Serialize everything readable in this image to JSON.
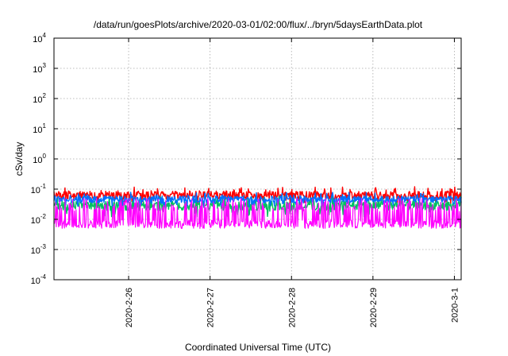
{
  "chart_data": {
    "type": "line",
    "title": "/data/run/goesPlots/archive/2020-03-01/02:00/flux/../bryn/5daysEarthData.plot",
    "xlabel": "Coordinated Universal Time (UTC)",
    "ylabel": "cSv/day",
    "y_scale": "log",
    "ylim": [
      0.0001,
      10000
    ],
    "y_ticks": [
      {
        "base": "10",
        "exp": "-4",
        "value": 0.0001
      },
      {
        "base": "10",
        "exp": "-3",
        "value": 0.001
      },
      {
        "base": "10",
        "exp": "-2",
        "value": 0.01
      },
      {
        "base": "10",
        "exp": "-1",
        "value": 0.1
      },
      {
        "base": "10",
        "exp": "0",
        "value": 1
      },
      {
        "base": "10",
        "exp": "1",
        "value": 10
      },
      {
        "base": "10",
        "exp": "2",
        "value": 100
      },
      {
        "base": "10",
        "exp": "3",
        "value": 1000
      },
      {
        "base": "10",
        "exp": "4",
        "value": 10000
      }
    ],
    "xlim": [
      "2020-02-25T02:00",
      "2020-03-01T02:00"
    ],
    "x_ticks": [
      {
        "label": "2020-2-26",
        "value": "2020-02-26T00:00"
      },
      {
        "label": "2020-2-27",
        "value": "2020-02-27T00:00"
      },
      {
        "label": "2020-2-28",
        "value": "2020-02-28T00:00"
      },
      {
        "label": "2020-2-29",
        "value": "2020-02-29T00:00"
      },
      {
        "label": "2020-3-1",
        "value": "2020-03-01T00:00"
      }
    ],
    "grid": true,
    "series": [
      {
        "color": "#ff0000",
        "typical_range": [
          0.03,
          0.12
        ]
      },
      {
        "color": "#00c060",
        "typical_range": [
          0.012,
          0.06
        ]
      },
      {
        "color": "#0070ff",
        "typical_range": [
          0.025,
          0.08
        ]
      },
      {
        "color": "#ff00ff",
        "typical_range": [
          0.005,
          0.05
        ]
      }
    ]
  }
}
